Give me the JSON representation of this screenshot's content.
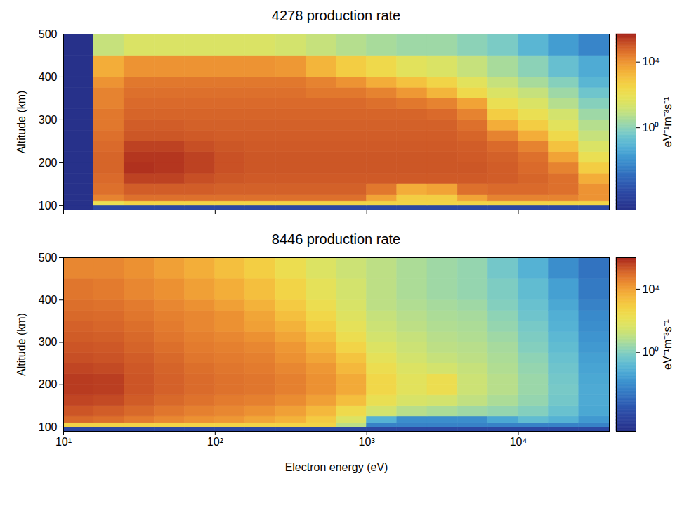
{
  "chart_data": [
    {
      "type": "heatmap",
      "title": "4278 production rate",
      "ylabel": "Altitude (km)",
      "log": "x",
      "tick_labels": "y",
      "xlim": [
        10,
        39811
      ],
      "ylim": [
        90,
        500
      ],
      "xticks": [
        10,
        100,
        1000,
        10000
      ],
      "yticks": [
        100,
        200,
        300,
        400,
        500
      ],
      "x_edges": [
        10,
        15.8,
        25.1,
        39.8,
        63.1,
        100,
        158,
        251,
        398,
        631,
        1000,
        1585,
        2512,
        3981,
        6310,
        10000,
        15849,
        25119,
        39811
      ],
      "y_edges": [
        90,
        100,
        110,
        125,
        150,
        175,
        200,
        225,
        250,
        275,
        300,
        325,
        350,
        375,
        400,
        450,
        500
      ],
      "values": [
        [
          1e-05,
          0.0001,
          0.0001,
          0.0001,
          0.0001,
          0.0001,
          0.0001,
          0.0001,
          0.0001,
          0.0001,
          0.0001,
          0.0001,
          0.0001,
          0.0001,
          0.0001,
          0.0001,
          0.0001,
          0.0001
        ],
        [
          1e-05,
          100.0,
          300.0,
          300.0,
          300.0,
          300.0,
          300.0,
          300.0,
          300.0,
          300.0,
          300.0,
          300.0,
          300.0,
          300.0,
          300.0,
          300.0,
          300.0,
          300.0
        ],
        [
          1e-05,
          20000.0,
          40000.0,
          40000.0,
          40000.0,
          40000.0,
          40000.0,
          40000.0,
          40000.0,
          40000.0,
          5000.0,
          500.0,
          500.0,
          5000.0,
          20000.0,
          20000.0,
          20000.0,
          10000.0
        ],
        [
          1e-05,
          40000.0,
          80000.0,
          80000.0,
          80000.0,
          70000.0,
          70000.0,
          70000.0,
          70000.0,
          70000.0,
          30000.0,
          3000.0,
          5000.0,
          40000.0,
          50000.0,
          50000.0,
          40000.0,
          10000.0
        ],
        [
          1e-05,
          50000.0,
          200000.0,
          200000.0,
          130000.0,
          100000.0,
          90000.0,
          90000.0,
          90000.0,
          90000.0,
          90000.0,
          90000.0,
          90000.0,
          90000.0,
          80000.0,
          60000.0,
          40000.0,
          3000.0
        ],
        [
          1e-05,
          60000.0,
          350000.0,
          300000.0,
          200000.0,
          120000.0,
          100000.0,
          100000.0,
          100000.0,
          100000.0,
          100000.0,
          100000.0,
          100000.0,
          100000.0,
          80000.0,
          50000.0,
          20000.0,
          500.0
        ],
        [
          1e-05,
          60000.0,
          300000.0,
          300000.0,
          200000.0,
          120000.0,
          100000.0,
          100000.0,
          100000.0,
          100000.0,
          100000.0,
          100000.0,
          100000.0,
          90000.0,
          70000.0,
          40000.0,
          5000.0,
          100.0
        ],
        [
          1e-05,
          50000.0,
          200000.0,
          200000.0,
          130000.0,
          100000.0,
          90000.0,
          90000.0,
          90000.0,
          90000.0,
          90000.0,
          90000.0,
          90000.0,
          80000.0,
          50000.0,
          20000.0,
          1000.0,
          30.0
        ],
        [
          1e-05,
          40000.0,
          100000.0,
          100000.0,
          90000.0,
          80000.0,
          80000.0,
          80000.0,
          80000.0,
          80000.0,
          80000.0,
          80000.0,
          80000.0,
          60000.0,
          20000.0,
          3000.0,
          200.0,
          10.0
        ],
        [
          1e-05,
          30000.0,
          80000.0,
          80000.0,
          70000.0,
          70000.0,
          70000.0,
          70000.0,
          70000.0,
          70000.0,
          70000.0,
          70000.0,
          70000.0,
          40000.0,
          3000.0,
          500.0,
          50.0,
          5.0
        ],
        [
          1e-05,
          30000.0,
          60000.0,
          60000.0,
          60000.0,
          60000.0,
          60000.0,
          60000.0,
          60000.0,
          60000.0,
          60000.0,
          60000.0,
          50000.0,
          20000.0,
          500.0,
          100.0,
          20.0,
          2.0
        ],
        [
          1e-05,
          20000.0,
          50000.0,
          50000.0,
          50000.0,
          50000.0,
          50000.0,
          50000.0,
          50000.0,
          50000.0,
          40000.0,
          30000.0,
          20000.0,
          5000.0,
          100.0,
          30.0,
          5.0,
          0.8
        ],
        [
          1e-05,
          20000.0,
          40000.0,
          40000.0,
          40000.0,
          40000.0,
          40000.0,
          40000.0,
          30000.0,
          30000.0,
          20000.0,
          8000.0,
          2000.0,
          200.0,
          30.0,
          10.0,
          2.0,
          0.3
        ],
        [
          1e-05,
          10000.0,
          30000.0,
          30000.0,
          30000.0,
          30000.0,
          30000.0,
          30000.0,
          20000.0,
          10000.0,
          3000.0,
          1000.0,
          300.0,
          50.0,
          10.0,
          3.0,
          0.8,
          0.1
        ],
        [
          1e-05,
          3000.0,
          10000.0,
          10000.0,
          10000.0,
          10000.0,
          10000.0,
          8000.0,
          2000.0,
          500.0,
          200.0,
          50.0,
          30.0,
          10.0,
          3.0,
          1.0,
          0.2,
          0.05
        ],
        [
          1e-05,
          10.0,
          30.0,
          30.0,
          30.0,
          30.0,
          30.0,
          20.0,
          10.0,
          5.0,
          3.0,
          2.0,
          2.0,
          1.0,
          0.5,
          0.1,
          0.02,
          0.005
        ]
      ],
      "colorbar": {
        "lim": [
          1e-05,
          500000.0
        ],
        "ticks": [
          {
            "value": 1,
            "label": "10⁰"
          },
          {
            "value": 10000,
            "label": "10⁴"
          }
        ],
        "label": "eV⁻¹m⁻³s⁻¹"
      }
    },
    {
      "type": "heatmap",
      "title": "8446 production rate",
      "xlabel": "Electron energy (eV)",
      "ylabel": "Altitude (km)",
      "log": "x",
      "xlim": [
        10,
        39811
      ],
      "ylim": [
        90,
        500
      ],
      "xticks": [
        {
          "value": 10,
          "label": "10¹"
        },
        {
          "value": 100,
          "label": "10²"
        },
        {
          "value": 1000,
          "label": "10³"
        },
        {
          "value": 10000,
          "label": "10⁴"
        }
      ],
      "yticks": [
        100,
        200,
        300,
        400,
        500
      ],
      "x_edges": [
        10,
        15.8,
        25.1,
        39.8,
        63.1,
        100,
        158,
        251,
        398,
        631,
        1000,
        1585,
        2512,
        3981,
        6310,
        10000,
        15849,
        25119,
        39811
      ],
      "y_edges": [
        90,
        100,
        110,
        125,
        150,
        175,
        200,
        225,
        250,
        275,
        300,
        325,
        350,
        375,
        400,
        450,
        500
      ],
      "values": [
        [
          0.0001,
          0.0001,
          0.0001,
          0.0001,
          0.0001,
          0.0001,
          0.0001,
          0.0001,
          0.0001,
          0.0001,
          0.0001,
          0.0001,
          0.0001,
          0.0001,
          0.0001,
          0.0001,
          0.0001,
          0.0001
        ],
        [
          500.0,
          500.0,
          500.0,
          500.0,
          500.0,
          500.0,
          500.0,
          500.0,
          500.0,
          10.0,
          0.005,
          0.005,
          0.005,
          0.005,
          0.005,
          0.005,
          0.005,
          0.005
        ],
        [
          100000.0,
          80000.0,
          50000.0,
          30000.0,
          20000.0,
          15000.0,
          8000.0,
          4000.0,
          1000.0,
          50.0,
          0.1,
          0.01,
          0.01,
          0.01,
          0.05,
          0.2,
          0.1,
          0.02
        ],
        [
          200000.0,
          150000.0,
          100000.0,
          60000.0,
          40000.0,
          30000.0,
          20000.0,
          10000.0,
          3000.0,
          300.0,
          30.0,
          8.0,
          5.0,
          3.0,
          2.0,
          1.0,
          0.3,
          0.05
        ],
        [
          350000.0,
          300000.0,
          160000.0,
          100000.0,
          70000.0,
          50000.0,
          40000.0,
          25000.0,
          10000.0,
          2000.0,
          150.0,
          40.0,
          30.0,
          12.0,
          5.0,
          2.0,
          0.5,
          0.06
        ],
        [
          500000.0,
          450000.0,
          200000.0,
          130000.0,
          90000.0,
          70000.0,
          60000.0,
          40000.0,
          20000.0,
          6000.0,
          400.0,
          80.0,
          200.0,
          20.0,
          8.0,
          2.5,
          0.6,
          0.06
        ],
        [
          500000.0,
          450000.0,
          200000.0,
          130000.0,
          90000.0,
          70000.0,
          60000.0,
          40000.0,
          20000.0,
          6000.0,
          400.0,
          80.0,
          200.0,
          20.0,
          8.0,
          2.5,
          0.5,
          0.05
        ],
        [
          350000.0,
          300000.0,
          180000.0,
          120000.0,
          80000.0,
          60000.0,
          50000.0,
          30000.0,
          15000.0,
          3000.0,
          200.0,
          50.0,
          30.0,
          15.0,
          6.0,
          2.0,
          0.4,
          0.04
        ],
        [
          250000.0,
          220000.0,
          150000.0,
          100000.0,
          60000.0,
          50000.0,
          40000.0,
          20000.0,
          8000.0,
          1500.0,
          100.0,
          30.0,
          15.0,
          10.0,
          5.0,
          1.5,
          0.3,
          0.03
        ],
        [
          200000.0,
          180000.0,
          120000.0,
          80000.0,
          50000.0,
          40000.0,
          30000.0,
          15000.0,
          4000.0,
          500.0,
          50.0,
          20.0,
          10.0,
          8.0,
          4.0,
          1.0,
          0.2,
          0.02
        ],
        [
          160000.0,
          140000.0,
          100000.0,
          60000.0,
          40000.0,
          30000.0,
          20000.0,
          8000.0,
          2000.0,
          200.0,
          30.0,
          15.0,
          8.0,
          6.0,
          3.0,
          0.8,
          0.15,
          0.015
        ],
        [
          130000.0,
          110000.0,
          80000.0,
          50000.0,
          30000.0,
          20000.0,
          10000.0,
          4000.0,
          800.0,
          100.0,
          20.0,
          10.0,
          6.0,
          5.0,
          2.0,
          0.6,
          0.1,
          0.01
        ],
        [
          100000.0,
          90000.0,
          60000.0,
          40000.0,
          30000.0,
          20000.0,
          8000.0,
          2000.0,
          400.0,
          60.0,
          15.0,
          8.0,
          5.0,
          4.0,
          1.5,
          0.4,
          0.08,
          0.008
        ],
        [
          80000.0,
          70000.0,
          50000.0,
          30000.0,
          20000.0,
          10000.0,
          4000.0,
          1000.0,
          200.0,
          40.0,
          10.0,
          6.0,
          4.0,
          3.0,
          1.0,
          0.3,
          0.05,
          0.005
        ],
        [
          60000.0,
          50000.0,
          30000.0,
          20000.0,
          10000.0,
          5000.0,
          2000.0,
          500.0,
          100.0,
          30.0,
          10.0,
          5.0,
          3.0,
          2.0,
          0.8,
          0.2,
          0.03,
          0.003
        ],
        [
          30000.0,
          30000.0,
          20000.0,
          10000.0,
          5000.0,
          2000.0,
          800.0,
          200.0,
          50.0,
          20.0,
          10.0,
          5.0,
          3.0,
          2.0,
          0.5,
          0.1,
          0.01,
          0.002
        ]
      ],
      "colorbar": {
        "lim": [
          1e-05,
          1000000.0
        ],
        "ticks": [
          {
            "value": 1,
            "label": "10⁰"
          },
          {
            "value": 10000,
            "label": "10⁴"
          }
        ],
        "label": "eV⁻¹m⁻³s⁻¹"
      }
    }
  ]
}
